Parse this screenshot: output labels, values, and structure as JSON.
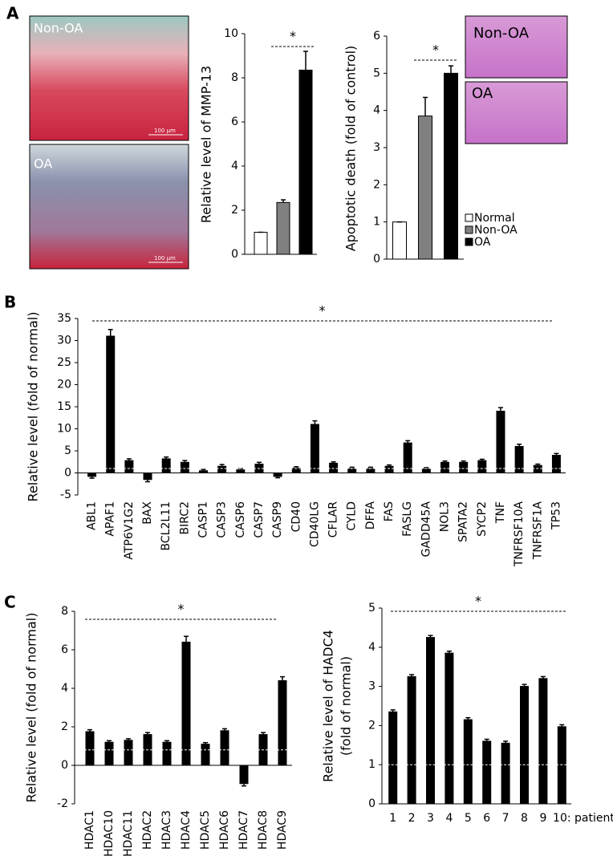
{
  "panels": [
    "A",
    "B",
    "C"
  ],
  "images": [
    {
      "label": "Non-OA",
      "scale": "100 μm"
    },
    {
      "label": "OA",
      "scale": "100 μm"
    },
    {
      "label": "Non-OA"
    },
    {
      "label": "OA"
    }
  ],
  "chart_data": [
    {
      "type": "bar",
      "ylabel": "Relative level of MMP-13",
      "values": [
        1,
        2.35,
        8.35
      ],
      "errors": [
        0,
        0.12,
        0.85
      ],
      "colors": [
        "#ffffff",
        "#808080",
        "#000000"
      ],
      "ylim": [
        0,
        10
      ],
      "yticks": [
        0,
        2,
        4,
        6,
        8,
        10
      ],
      "annotation": "*"
    },
    {
      "type": "bar",
      "ylabel": "Apoptotic death (fold of control)",
      "series": [
        {
          "name": "Normal",
          "color": "#ffffff",
          "values": [
            1
          ],
          "errors": [
            0
          ]
        },
        {
          "name": "Non-OA",
          "color": "#808080",
          "values": [
            3.85
          ],
          "errors": [
            0.5
          ]
        },
        {
          "name": "OA",
          "color": "#000000",
          "values": [
            5.0
          ],
          "errors": [
            0.2
          ]
        }
      ],
      "ylim": [
        0,
        6
      ],
      "yticks": [
        0,
        1,
        2,
        3,
        4,
        5,
        6
      ],
      "annotation": "*",
      "legend": "right"
    },
    {
      "type": "bar",
      "ylabel": "Relative level (fold of normal)",
      "categories": [
        "ABL1",
        "APAF1",
        "ATP6V1G2",
        "BAX",
        "BCL2L11",
        "BIRC2",
        "CASP1",
        "CASP3",
        "CASP6",
        "CASP7",
        "CASP9",
        "CD40",
        "CD40LG",
        "CFLAR",
        "CYLD",
        "DFFA",
        "FAS",
        "FASLG",
        "GADD45A",
        "NOL3",
        "SPATA2",
        "SYCP2",
        "TNF",
        "TNFRSF10A",
        "TNFRSF1A",
        "TP53"
      ],
      "values": [
        -0.8,
        31,
        2.8,
        -1.5,
        3.2,
        2.4,
        0.5,
        1.5,
        0.7,
        2.0,
        -0.8,
        1.1,
        11,
        2.2,
        1.0,
        1.0,
        1.5,
        6.8,
        0.9,
        2.4,
        2.4,
        2.8,
        14,
        6.0,
        1.7,
        4.0
      ],
      "errors": [
        0.4,
        1.5,
        0.4,
        0.5,
        0.4,
        0.4,
        0.3,
        0.4,
        0.3,
        0.4,
        0.3,
        0.3,
        0.8,
        0.3,
        0.3,
        0.3,
        0.3,
        0.5,
        0.3,
        0.3,
        0.3,
        0.3,
        0.8,
        0.5,
        0.3,
        0.4
      ],
      "color": "#000000",
      "ylim": [
        -5,
        35
      ],
      "yticks": [
        -5,
        0,
        5,
        10,
        15,
        20,
        25,
        30,
        35
      ],
      "annotation": "*",
      "reference_line": 1
    },
    {
      "type": "bar",
      "ylabel": "Relative level (fold of normal)",
      "categories": [
        "HDAC1",
        "HDAC10",
        "HDAC11",
        "HDAC2",
        "HDAC3",
        "HDAC4",
        "HDAC5",
        "HDAC6",
        "HDAC7",
        "HDAC8",
        "HDAC9"
      ],
      "values": [
        1.75,
        1.2,
        1.3,
        1.6,
        1.2,
        6.4,
        1.1,
        1.8,
        -0.95,
        1.6,
        4.4
      ],
      "errors": [
        0.1,
        0.08,
        0.08,
        0.1,
        0.08,
        0.3,
        0.08,
        0.1,
        0.12,
        0.1,
        0.2
      ],
      "color": "#000000",
      "ylim": [
        -2,
        8
      ],
      "yticks": [
        -2,
        0,
        2,
        4,
        6,
        8
      ],
      "annotation": "*",
      "reference_line": 0.8
    },
    {
      "type": "bar",
      "ylabel": [
        "Relative level of HADC4",
        "(fold of normal)"
      ],
      "xlabel": "patients",
      "categories": [
        "1",
        "2",
        "3",
        "4",
        "5",
        "6",
        "7",
        "8",
        "9",
        "10:"
      ],
      "values": [
        2.35,
        3.25,
        4.25,
        3.85,
        2.15,
        1.6,
        1.55,
        3.0,
        3.2,
        1.97
      ],
      "errors": [
        0.05,
        0.05,
        0.05,
        0.05,
        0.05,
        0.05,
        0.05,
        0.05,
        0.05,
        0.05
      ],
      "color": "#000000",
      "ylim": [
        0,
        5
      ],
      "yticks": [
        0,
        1,
        2,
        3,
        4,
        5
      ],
      "annotation": "*",
      "reference_line": 1
    }
  ]
}
